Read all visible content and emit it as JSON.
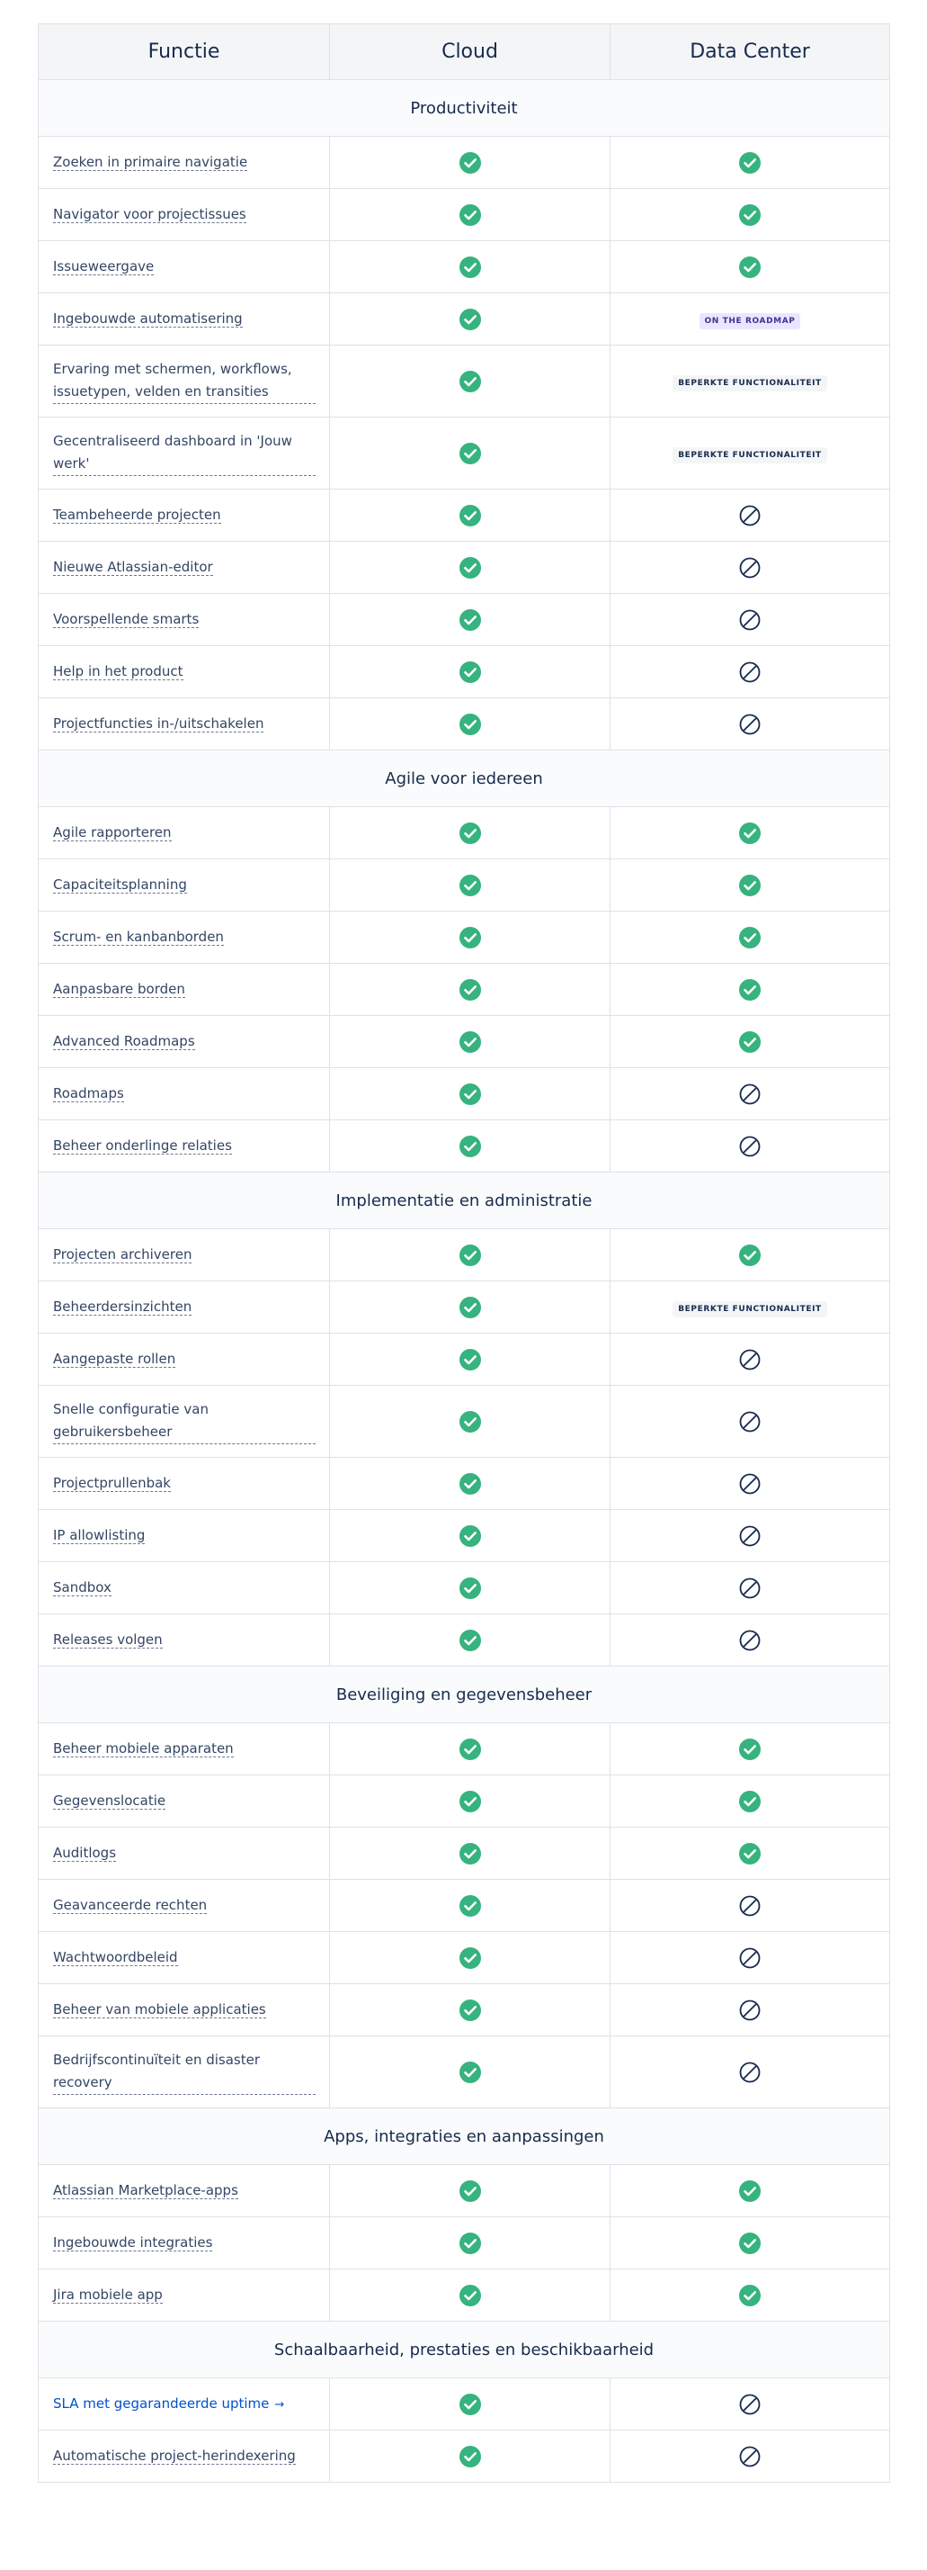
{
  "header": {
    "col_feature": "Functie",
    "col_cloud": "Cloud",
    "col_dc": "Data Center"
  },
  "colors": {
    "check": "#36b37e",
    "na": "#172b4d",
    "roadmap_bg": "#eae6ff",
    "link": "#0052cc"
  },
  "sections": [
    {
      "title": "Productiviteit",
      "rows": [
        {
          "label": "Zoeken in primaire navigatie",
          "cloud": "check",
          "dc": "check"
        },
        {
          "label": "Navigator voor projectissues",
          "cloud": "check",
          "dc": "check"
        },
        {
          "label": "Issueweergave",
          "cloud": "check",
          "dc": "check"
        },
        {
          "label": "Ingebouwde automatisering",
          "cloud": "check",
          "dc": "roadmap"
        },
        {
          "label": "Ervaring met schermen, workflows, issuetypen, velden en transities",
          "cloud": "check",
          "dc": "limited",
          "tall": true
        },
        {
          "label": "Gecentraliseerd dashboard in 'Jouw werk'",
          "cloud": "check",
          "dc": "limited",
          "tall": true
        },
        {
          "label": "Teambeheerde projecten",
          "cloud": "check",
          "dc": "na"
        },
        {
          "label": "Nieuwe Atlassian-editor",
          "cloud": "check",
          "dc": "na"
        },
        {
          "label": "Voorspellende smarts",
          "cloud": "check",
          "dc": "na"
        },
        {
          "label": "Help in het product",
          "cloud": "check",
          "dc": "na"
        },
        {
          "label": "Projectfuncties in-/uitschakelen",
          "cloud": "check",
          "dc": "na"
        }
      ]
    },
    {
      "title": "Agile voor iedereen",
      "rows": [
        {
          "label": "Agile rapporteren",
          "cloud": "check",
          "dc": "check"
        },
        {
          "label": "Capaciteitsplanning",
          "cloud": "check",
          "dc": "check"
        },
        {
          "label": "Scrum- en kanbanborden",
          "cloud": "check",
          "dc": "check"
        },
        {
          "label": "Aanpasbare borden",
          "cloud": "check",
          "dc": "check"
        },
        {
          "label": "Advanced Roadmaps",
          "cloud": "check",
          "dc": "check"
        },
        {
          "label": "Roadmaps",
          "cloud": "check",
          "dc": "na"
        },
        {
          "label": "Beheer onderlinge relaties",
          "cloud": "check",
          "dc": "na"
        }
      ]
    },
    {
      "title": "Implementatie en administratie",
      "rows": [
        {
          "label": "Projecten archiveren",
          "cloud": "check",
          "dc": "check"
        },
        {
          "label": "Beheerdersinzichten",
          "cloud": "check",
          "dc": "limited"
        },
        {
          "label": "Aangepaste rollen",
          "cloud": "check",
          "dc": "na"
        },
        {
          "label": "Snelle configuratie van gebruikersbeheer",
          "cloud": "check",
          "dc": "na",
          "tall": true
        },
        {
          "label": "Projectprullenbak",
          "cloud": "check",
          "dc": "na"
        },
        {
          "label": "IP allowlisting",
          "cloud": "check",
          "dc": "na"
        },
        {
          "label": "Sandbox",
          "cloud": "check",
          "dc": "na"
        },
        {
          "label": "Releases volgen",
          "cloud": "check",
          "dc": "na"
        }
      ]
    },
    {
      "title": "Beveiliging en gegevensbeheer",
      "rows": [
        {
          "label": "Beheer mobiele apparaten",
          "cloud": "check",
          "dc": "check"
        },
        {
          "label": "Gegevenslocatie",
          "cloud": "check",
          "dc": "check"
        },
        {
          "label": "Auditlogs",
          "cloud": "check",
          "dc": "check"
        },
        {
          "label": "Geavanceerde rechten",
          "cloud": "check",
          "dc": "na"
        },
        {
          "label": "Wachtwoordbeleid",
          "cloud": "check",
          "dc": "na"
        },
        {
          "label": "Beheer van mobiele applicaties",
          "cloud": "check",
          "dc": "na"
        },
        {
          "label": "Bedrijfscontinuïteit en disaster recovery",
          "cloud": "check",
          "dc": "na",
          "tall": true
        }
      ]
    },
    {
      "title": "Apps, integraties en aanpassingen",
      "rows": [
        {
          "label": "Atlassian Marketplace-apps",
          "cloud": "check",
          "dc": "check"
        },
        {
          "label": "Ingebouwde integraties",
          "cloud": "check",
          "dc": "check"
        },
        {
          "label": "Jira mobiele app",
          "cloud": "check",
          "dc": "check"
        }
      ]
    },
    {
      "title": "Schaalbaarheid, prestaties en beschikbaarheid",
      "rows": [
        {
          "label": "SLA met gegarandeerde uptime",
          "cloud": "check",
          "dc": "na",
          "link": true,
          "arrow": "→"
        },
        {
          "label": "Automatische project-herindexering",
          "cloud": "check",
          "dc": "na"
        }
      ]
    }
  ],
  "badges": {
    "roadmap": "ON THE ROADMAP",
    "limited": "BEPERKTE FUNCTIONALITEIT"
  }
}
